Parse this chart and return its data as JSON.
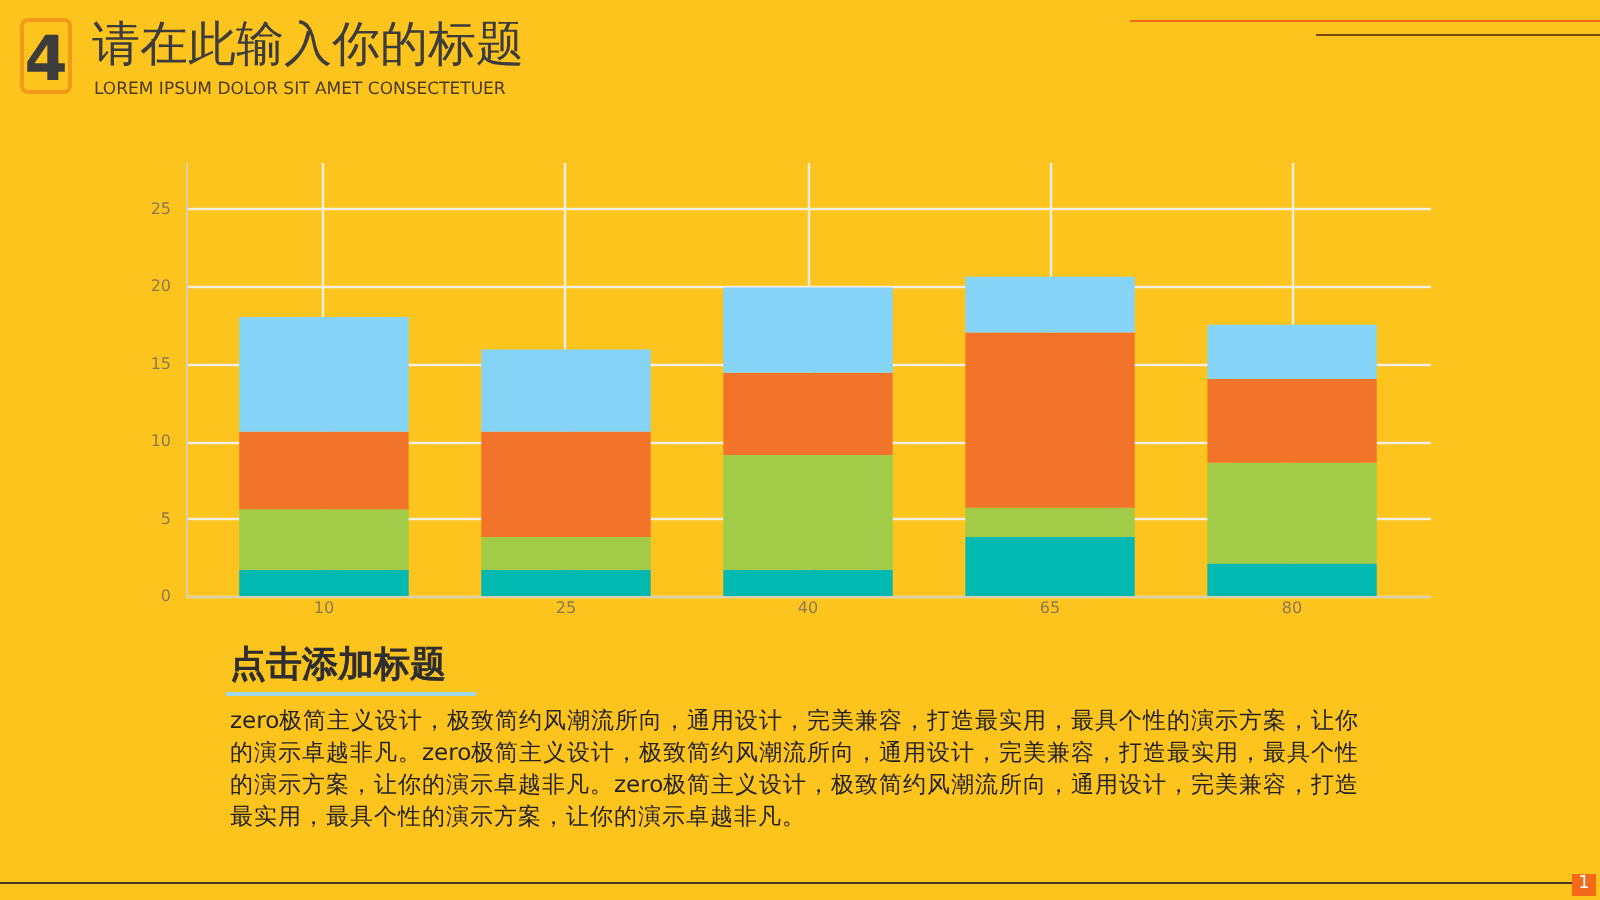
{
  "chart_data": {
    "type": "bar",
    "title": "请在此输入你的标题",
    "subtitle": "LOREM IPSUM DOLOR SIT AMET CONSECTETUER",
    "categories": [
      "10",
      "25",
      "40",
      "65",
      "80"
    ],
    "stacked": true,
    "series": [
      {
        "color": "#00b9b1",
        "values": [
          1.7,
          1.7,
          1.7,
          3.8,
          2.1
        ]
      },
      {
        "color": "#a2cb48",
        "values": [
          3.9,
          2.1,
          7.4,
          1.9,
          6.5
        ]
      },
      {
        "color": "#f2742a",
        "values": [
          5.0,
          6.8,
          5.3,
          11.3,
          5.4
        ]
      },
      {
        "color": "#85d3f7",
        "values": [
          7.4,
          5.3,
          5.5,
          3.6,
          3.5
        ]
      }
    ],
    "ylim": [
      0,
      28
    ],
    "yticks": [
      0,
      5,
      10,
      15,
      20,
      25
    ],
    "grid": true,
    "legend": false,
    "annotations": [
      "4",
      "点击添加标题",
      "zero极简主义设计，极致简约风潮流所向，通用设计，完美兼容，打造最实用，最具个性的演示方案，让你的演示卓越非凡。zero极简主义设计，极致简约风潮流所向，通用设计，完美兼容，打造最实用，最具个性的演示方案，让你的演示卓越非凡。zero极简主义设计，极致简约风潮流所向，通用设计，完美兼容，打造最实用，最具个性的演示方案，让你的演示卓越非凡。",
      "1"
    ]
  }
}
